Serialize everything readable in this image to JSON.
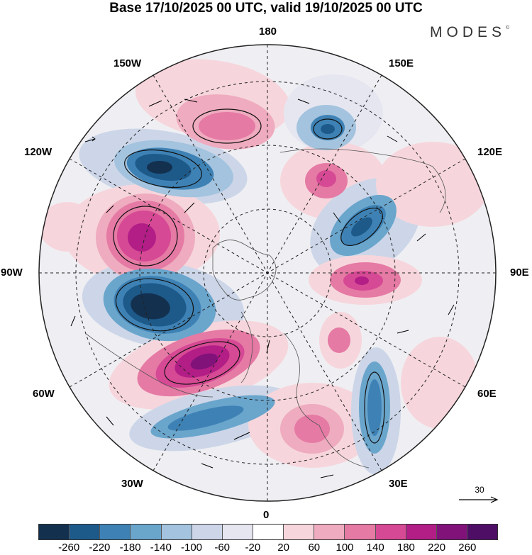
{
  "title": "Base 17/10/2025 00 UTC, valid 19/10/2025 00 UTC",
  "brand": "MODES",
  "brand_mark": "©",
  "map": {
    "projection": "north-polar-stereographic",
    "longitude_labels": {
      "top": "180",
      "bottom": "0",
      "left": "90W",
      "right": "90E",
      "upper_left_1": "150W",
      "upper_left_2": "120W",
      "lower_left_1": "60W",
      "lower_left_2": "30W",
      "upper_right_1": "150E",
      "upper_right_2": "120E",
      "lower_right_1": "60E",
      "lower_right_2": "30E"
    },
    "reference_vector_label": "30",
    "anomaly_features": [
      {
        "name": "positive-anomaly-aleutian",
        "sign": "positive"
      },
      {
        "name": "negative-anomaly-okhotsk",
        "sign": "negative"
      },
      {
        "name": "negative-anomaly-gulf-of-alaska",
        "sign": "negative"
      },
      {
        "name": "positive-anomaly-west-canada",
        "sign": "positive"
      },
      {
        "name": "negative-anomaly-east-canada",
        "sign": "negative"
      },
      {
        "name": "positive-anomaly-north-atlantic",
        "sign": "positive"
      },
      {
        "name": "negative-anomaly-central-atlantic",
        "sign": "negative"
      },
      {
        "name": "positive-anomaly-scandinavia",
        "sign": "positive"
      },
      {
        "name": "negative-anomaly-urals",
        "sign": "negative"
      },
      {
        "name": "positive-anomaly-siberia",
        "sign": "positive"
      },
      {
        "name": "negative-anomaly-east-siberia",
        "sign": "negative"
      },
      {
        "name": "positive-anomaly-yakutia",
        "sign": "positive"
      }
    ]
  },
  "colorbar": {
    "ticks": [
      "-260",
      "-220",
      "-180",
      "-140",
      "-100",
      "-60",
      "-20",
      "20",
      "60",
      "100",
      "140",
      "180",
      "220",
      "260"
    ],
    "colors": [
      "#13304f",
      "#1d5a8a",
      "#3e82b5",
      "#6aa5cc",
      "#a3c3de",
      "#ccd6e8",
      "#e6e6f1",
      "#ffffff",
      "#f6d6dc",
      "#efabbf",
      "#e57aa4",
      "#d64994",
      "#b21d86",
      "#80127a",
      "#4f0e66"
    ]
  }
}
